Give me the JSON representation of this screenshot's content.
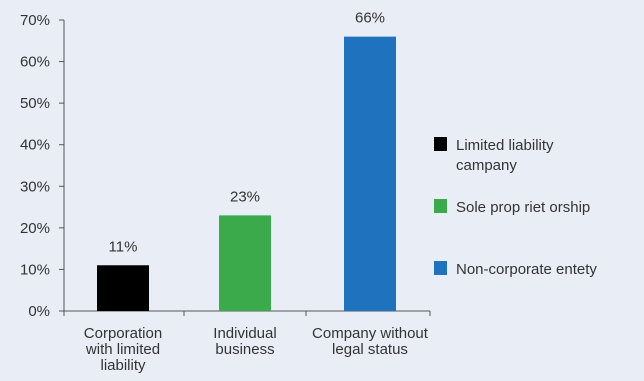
{
  "chart_data": {
    "type": "bar",
    "categories": [
      [
        "Corporation",
        "with limited",
        "liability"
      ],
      [
        "Individual",
        "business"
      ],
      [
        "Company without",
        "legal status"
      ]
    ],
    "values": [
      11,
      23,
      66
    ],
    "data_labels": [
      "11%",
      "23%",
      "66%"
    ],
    "colors": [
      "#000000",
      "#3aaa4a",
      "#1f72be"
    ],
    "ylim": [
      0,
      70
    ],
    "yticks": [
      0,
      10,
      20,
      30,
      40,
      50,
      60,
      70
    ],
    "ytick_labels": [
      "0%",
      "10%",
      "20%",
      "30%",
      "40%",
      "50%",
      "60%",
      "70%"
    ],
    "title": "",
    "xlabel": "",
    "ylabel": "",
    "grid": false,
    "legend_position": "right",
    "legend": [
      {
        "label": [
          "Limited liability",
          "campany"
        ],
        "color": "#000000"
      },
      {
        "label": [
          "Sole prop riet orship"
        ],
        "color": "#3aaa4a"
      },
      {
        "label": [
          "Non-corporate entety"
        ],
        "color": "#1f72be"
      }
    ]
  }
}
